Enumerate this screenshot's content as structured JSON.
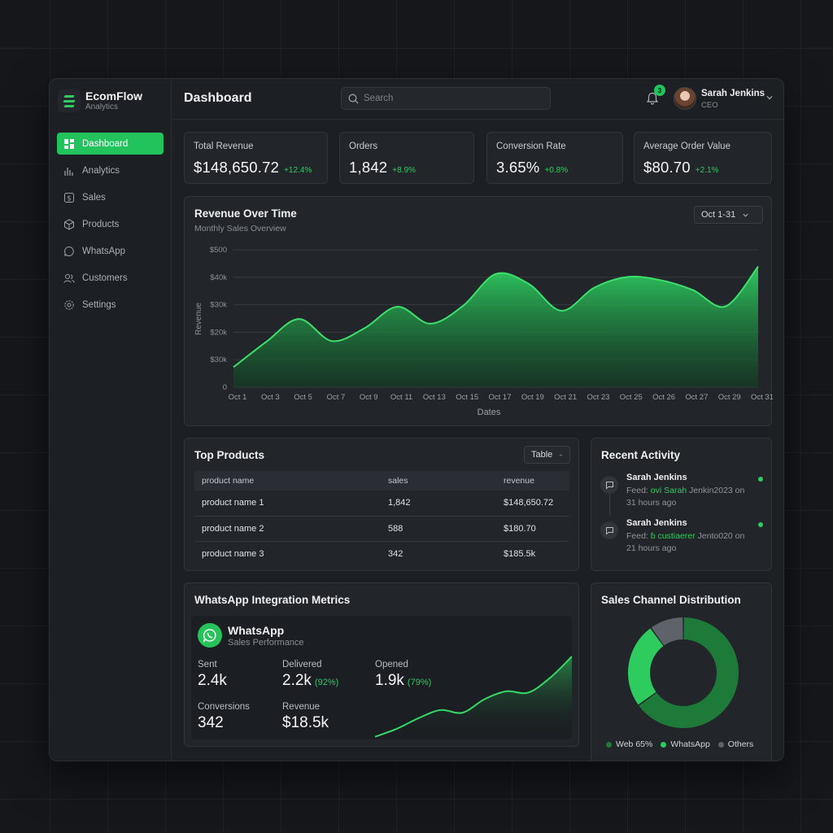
{
  "brand": {
    "name": "EcomFlow",
    "subtitle": "Analytics"
  },
  "nav": [
    {
      "label": "Dashboard",
      "icon": "dashboard-icon",
      "active": true
    },
    {
      "label": "Analytics",
      "icon": "analytics-icon"
    },
    {
      "label": "Sales",
      "icon": "sales-icon"
    },
    {
      "label": "Products",
      "icon": "products-icon"
    },
    {
      "label": "WhatsApp",
      "icon": "whatsapp-icon"
    },
    {
      "label": "Customers",
      "icon": "customers-icon"
    },
    {
      "label": "Settings",
      "icon": "settings-icon"
    }
  ],
  "header": {
    "title": "Dashboard",
    "search_placeholder": "Search",
    "notification_count": "3",
    "user": {
      "name": "Sarah Jenkins",
      "role": "CEO"
    }
  },
  "kpis": [
    {
      "label": "Total Revenue",
      "value": "$148,650.72",
      "change": "+12.4%"
    },
    {
      "label": "Orders",
      "value": "1,842",
      "change": "+8.9%"
    },
    {
      "label": "Conversion Rate",
      "value": "3.65%",
      "change": "+0.8%"
    },
    {
      "label": "Average Order Value",
      "value": "$80.70",
      "change": "+2.1%"
    }
  ],
  "revenue_chart": {
    "title": "Revenue Over Time",
    "subtitle": "Monthly Sales Overview",
    "range_label": "Oct 1-31",
    "y_ticks": [
      "0",
      "$30k",
      "$20k",
      "$30k",
      "$40k",
      "$500"
    ],
    "ylabel": "Revenue",
    "xlabel": "Dates",
    "colors": {
      "line": "#3ee06c",
      "fill": "#1f9a45"
    }
  },
  "chart_data": {
    "type": "area",
    "title": "Revenue Over Time",
    "subtitle": "Monthly Sales Overview",
    "xlabel": "Dates",
    "ylabel": "Revenue",
    "x": [
      "Oct 1",
      "Oct 3",
      "Oct 5",
      "Oct 7",
      "Oct 9",
      "Oct 11",
      "Oct 13",
      "Oct 15",
      "Oct 17",
      "Oct 19",
      "Oct 21",
      "Oct 23",
      "Oct 25",
      "Oct 26",
      "Oct 27",
      "Oct 29",
      "Oct 31"
    ],
    "values": [
      7.3,
      16.5,
      24.8,
      16.8,
      21.5,
      29.3,
      23.1,
      29.6,
      41.2,
      37.6,
      27.8,
      36.2,
      40.1,
      39.0,
      35.4,
      29.4,
      43.9
    ],
    "ylim": [
      0,
      50
    ],
    "grid": true,
    "y_unit": "k"
  },
  "top_products": {
    "title": "Top Products",
    "view_label": "Table",
    "columns": [
      "product name",
      "sales",
      "revenue"
    ],
    "rows": [
      [
        "product name 1",
        "1,842",
        "$148,650.72"
      ],
      [
        "product name 2",
        "588",
        "$180.70"
      ],
      [
        "product name 3",
        "342",
        "$185.5k"
      ]
    ]
  },
  "recent_activity": {
    "title": "Recent Activity",
    "items": [
      {
        "name": "Sarah Jenkins",
        "prefix": "Feed: ",
        "highlight": "ovi Sarah",
        "rest": " Jenkin2023 on",
        "time": "31 hours ago"
      },
      {
        "name": "Sarah Jenkins",
        "prefix": "Feed: ",
        "highlight": "ɓ custiaerer",
        "rest": " Jento020 on",
        "time": "21 hours ago"
      }
    ]
  },
  "whatsapp": {
    "title": "WhatsApp Integration Metrics",
    "name": "WhatsApp",
    "subtitle": "Sales Performance",
    "metrics": {
      "sent": {
        "label": "Sent",
        "value": "2.4k"
      },
      "delivered": {
        "label": "Delivered",
        "value": "2.2k",
        "pct": "(92%)"
      },
      "opened": {
        "label": "Opened",
        "value": "1.9k",
        "pct": "(79%)"
      },
      "conversions": {
        "label": "Conversions",
        "value": "342"
      },
      "revenue": {
        "label": "Revenue",
        "value": "$18.5k"
      }
    },
    "trend": [
      2,
      8,
      16,
      22,
      20,
      30,
      36,
      35,
      46,
      62
    ]
  },
  "sales_channel": {
    "title": "Sales Channel Distribution",
    "slices": [
      {
        "label": "Web",
        "pct_label": "65%",
        "value": 65,
        "color": "#1d7a38"
      },
      {
        "label": "WhatsApp",
        "value": 25,
        "color": "#2ecc5f"
      },
      {
        "label": "Others",
        "value": 10,
        "color": "#5d6369"
      }
    ]
  }
}
